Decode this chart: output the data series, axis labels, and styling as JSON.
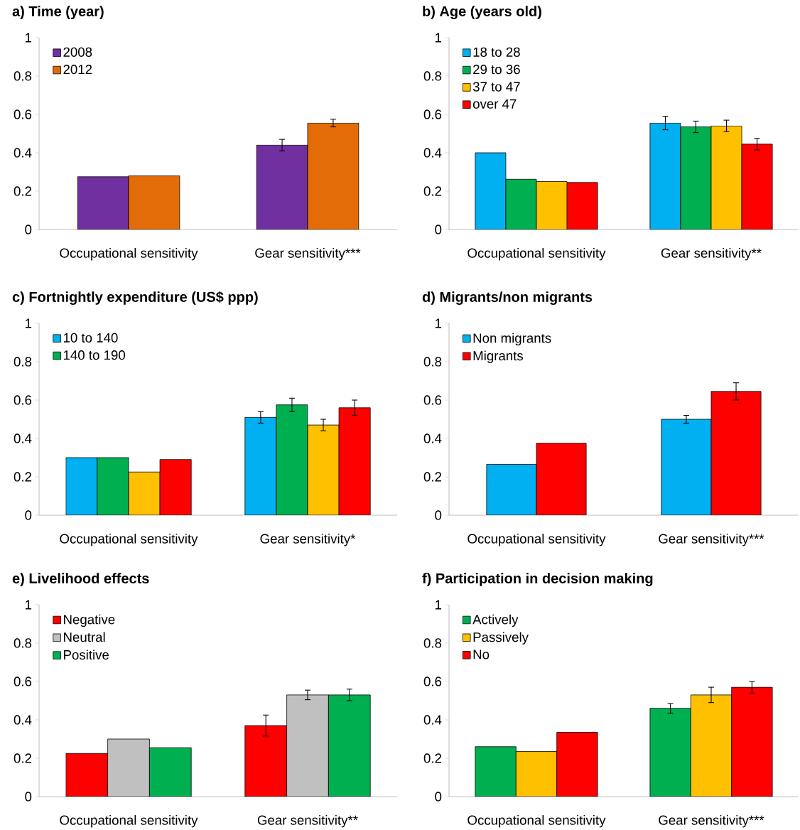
{
  "chart_data": [
    {
      "type": "bar",
      "title": "a) Time (year)",
      "categories": [
        "Occupational sensitivity",
        "Gear sensitivity***"
      ],
      "ylim": [
        0,
        1
      ],
      "yticks": [
        0,
        0.2,
        0.4,
        0.6,
        0.8,
        1
      ],
      "legend": "top left",
      "series": [
        {
          "name": "2008",
          "color": "#7030a0",
          "values": [
            0.275,
            0.44
          ],
          "errors": [
            null,
            0.03
          ]
        },
        {
          "name": "2012",
          "color": "#e36c09",
          "values": [
            0.28,
            0.555
          ],
          "errors": [
            null,
            0.02
          ]
        }
      ]
    },
    {
      "type": "bar",
      "title": "b) Age (years old)",
      "categories": [
        "Occupational sensitivity",
        "Gear sensitivity**"
      ],
      "ylim": [
        0,
        1
      ],
      "yticks": [
        0,
        0.2,
        0.4,
        0.6,
        0.8,
        1
      ],
      "legend": "top left",
      "series": [
        {
          "name": "18 to 28",
          "color": "#00b0f0",
          "values": [
            0.4,
            0.555
          ],
          "errors": [
            null,
            0.035
          ]
        },
        {
          "name": "29 to 36",
          "color": "#00b050",
          "values": [
            0.262,
            0.535
          ],
          "errors": [
            null,
            0.03
          ]
        },
        {
          "name": "37 to 47",
          "color": "#ffc000",
          "values": [
            0.25,
            0.54
          ],
          "errors": [
            null,
            0.03
          ]
        },
        {
          "name": "over 47",
          "color": "#ff0000",
          "values": [
            0.245,
            0.445
          ],
          "errors": [
            null,
            0.03
          ]
        }
      ]
    },
    {
      "type": "bar",
      "title": "c) Fortnightly expenditure (US$ ppp)",
      "categories": [
        "Occupational sensitivity",
        "Gear sensitivity*"
      ],
      "ylim": [
        0,
        1
      ],
      "yticks": [
        0,
        0.2,
        0.4,
        0.6,
        0.8,
        1
      ],
      "legend": "top left",
      "series": [
        {
          "name": "10 to 140",
          "color": "#00b0f0",
          "values": [
            0.3,
            0.51
          ],
          "errors": [
            null,
            0.03
          ]
        },
        {
          "name": "140 to 190",
          "color": "#00b050",
          "values": [
            0.3,
            0.575
          ],
          "errors": [
            null,
            0.035
          ]
        },
        {
          "color": "#ffc000",
          "values": [
            0.225,
            0.47
          ],
          "errors": [
            null,
            0.03
          ]
        },
        {
          "color": "#ff0000",
          "values": [
            0.29,
            0.56
          ],
          "errors": [
            null,
            0.04
          ]
        }
      ]
    },
    {
      "type": "bar",
      "title": "d) Migrants/non migrants",
      "categories": [
        "Occupational sensitivity",
        "Gear sensitivity***"
      ],
      "ylim": [
        0,
        1
      ],
      "yticks": [
        0,
        0.2,
        0.4,
        0.6,
        0.8,
        1
      ],
      "legend": "top left",
      "series": [
        {
          "name": "Non migrants",
          "color": "#00b0f0",
          "values": [
            0.265,
            0.5
          ],
          "errors": [
            null,
            0.02
          ]
        },
        {
          "name": "Migrants",
          "color": "#ff0000",
          "values": [
            0.375,
            0.645
          ],
          "errors": [
            null,
            0.045
          ]
        }
      ]
    },
    {
      "type": "bar",
      "title": "e) Livelihood effects",
      "categories": [
        "Occupational sensitivity",
        "Gear sensitivity**"
      ],
      "ylim": [
        0,
        1
      ],
      "yticks": [
        0,
        0.2,
        0.4,
        0.6,
        0.8,
        1
      ],
      "legend": "top left",
      "series": [
        {
          "name": "Negative",
          "color": "#ff0000",
          "values": [
            0.225,
            0.37
          ],
          "errors": [
            null,
            0.055
          ]
        },
        {
          "name": "Neutral",
          "color": "#c0c0c0",
          "values": [
            0.3,
            0.53
          ],
          "errors": [
            null,
            0.025
          ]
        },
        {
          "name": "Positive",
          "color": "#00b050",
          "values": [
            0.255,
            0.53
          ],
          "errors": [
            null,
            0.03
          ]
        }
      ]
    },
    {
      "type": "bar",
      "title": "f) Participation in decision making",
      "categories": [
        "Occupational sensitivity",
        "Gear sensitivity***"
      ],
      "ylim": [
        0,
        1
      ],
      "yticks": [
        0,
        0.2,
        0.4,
        0.6,
        0.8,
        1
      ],
      "legend": "top left",
      "series": [
        {
          "name": "Actively",
          "color": "#00b050",
          "values": [
            0.26,
            0.46
          ],
          "errors": [
            null,
            0.025
          ]
        },
        {
          "name": "Passively",
          "color": "#ffc000",
          "values": [
            0.235,
            0.53
          ],
          "errors": [
            null,
            0.04
          ]
        },
        {
          "name": "No",
          "color": "#ff0000",
          "values": [
            0.335,
            0.57
          ],
          "errors": [
            null,
            0.03
          ]
        }
      ]
    }
  ]
}
